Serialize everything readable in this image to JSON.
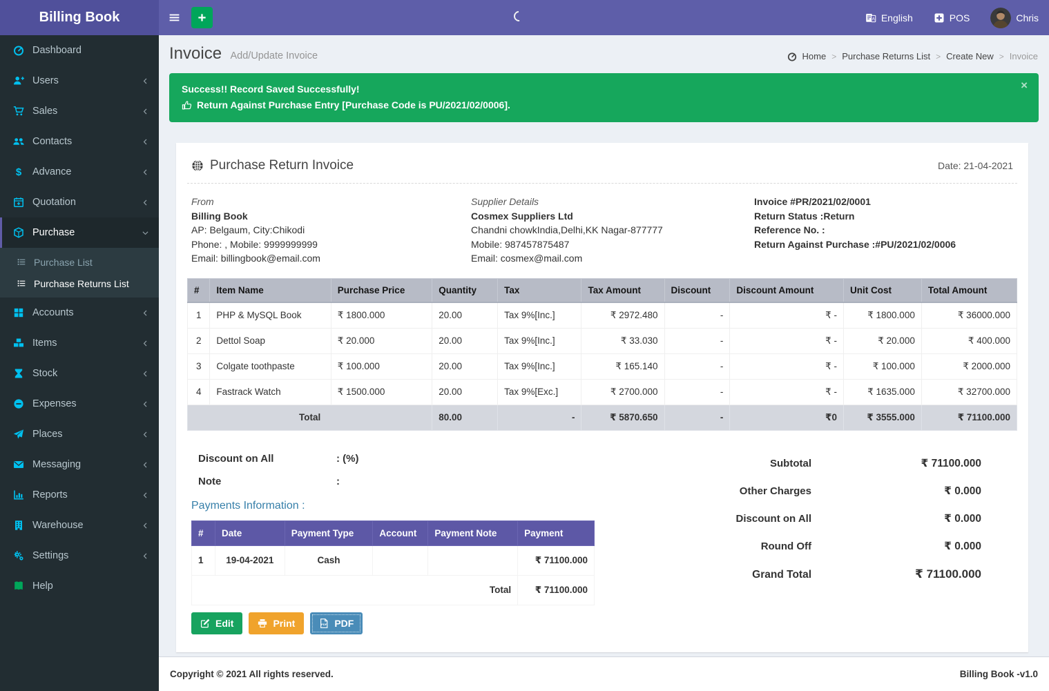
{
  "brand": {
    "title": "Billing Book"
  },
  "navbar": {
    "language_label": "English",
    "pos_label": "POS",
    "user_name": "Chris"
  },
  "sidebar": {
    "items": [
      {
        "label": "Dashboard",
        "icon": "gauge-icon"
      },
      {
        "label": "Users",
        "icon": "user-plus-icon"
      },
      {
        "label": "Sales",
        "icon": "cart-icon"
      },
      {
        "label": "Contacts",
        "icon": "users-icon"
      },
      {
        "label": "Advance",
        "icon": "dollar-icon"
      },
      {
        "label": "Quotation",
        "icon": "calendar-plus-icon"
      },
      {
        "label": "Purchase",
        "icon": "cube-icon"
      },
      {
        "label": "Accounts",
        "icon": "grid-icon"
      },
      {
        "label": "Items",
        "icon": "cubes-icon"
      },
      {
        "label": "Stock",
        "icon": "hourglass-icon"
      },
      {
        "label": "Expenses",
        "icon": "minus-circle-icon"
      },
      {
        "label": "Places",
        "icon": "paper-plane-icon"
      },
      {
        "label": "Messaging",
        "icon": "envelope-icon"
      },
      {
        "label": "Reports",
        "icon": "bar-chart-icon"
      },
      {
        "label": "Warehouse",
        "icon": "building-icon"
      },
      {
        "label": "Settings",
        "icon": "gears-icon"
      },
      {
        "label": "Help",
        "icon": "book-icon"
      }
    ],
    "purchase_children": [
      {
        "label": "Purchase List"
      },
      {
        "label": "Purchase Returns List"
      }
    ]
  },
  "page_header": {
    "title": "Invoice",
    "subtitle": "Add/Update Invoice"
  },
  "breadcrumb": {
    "separator": ">",
    "items": [
      {
        "label": "Home"
      },
      {
        "label": "Purchase Returns List"
      },
      {
        "label": "Create New"
      },
      {
        "label": "Invoice"
      }
    ]
  },
  "alert": {
    "line1": "Success!! Record Saved Successfully!",
    "line2": "Return Against Purchase Entry [Purchase Code is PU/2021/02/0006].",
    "close": "×"
  },
  "invoice": {
    "title": "Purchase Return Invoice",
    "date": "Date: 21-04-2021",
    "from": {
      "heading": "From",
      "name": "Billing Book",
      "address": "AP: Belgaum, City:Chikodi",
      "phone": "Phone: , Mobile: 9999999999",
      "email": "Email: billingbook@email.com"
    },
    "supplier": {
      "heading": "Supplier Details",
      "name": "Cosmex Suppliers Ltd",
      "address": "Chandni chowkIndia,Delhi,KK Nagar-877777",
      "phone": "Mobile: 987457875487",
      "email": "Email: cosmex@mail.com"
    },
    "meta": {
      "invoice_no": "Invoice #PR/2021/02/0001",
      "return_status": "Return Status :Return",
      "reference_no": "Reference No. :",
      "return_against": "Return Against Purchase :#PU/2021/02/0006"
    },
    "table": {
      "headers": [
        "#",
        "Item Name",
        "Purchase Price",
        "Quantity",
        "Tax",
        "Tax Amount",
        "Discount",
        "Discount Amount",
        "Unit Cost",
        "Total Amount"
      ],
      "total": {
        "label": "Total",
        "qty": "80.00",
        "tax": "-",
        "tax_amount": "₹ 5870.650",
        "discount": "-",
        "discount_amount": "₹0",
        "unit_cost": "₹ 3555.000",
        "total": "₹ 71100.000"
      }
    },
    "items": [
      {
        "sn": "1",
        "name": "PHP & MySQL Book",
        "price": "₹ 1800.000",
        "qty": "20.00",
        "tax": "Tax 9%[Inc.]",
        "tax_amount": "₹ 2972.480",
        "discount": "-",
        "discount_amount": "₹ -",
        "unit_cost": "₹ 1800.000",
        "total": "₹ 36000.000"
      },
      {
        "sn": "2",
        "name": "Dettol Soap",
        "price": "₹ 20.000",
        "qty": "20.00",
        "tax": "Tax 9%[Inc.]",
        "tax_amount": "₹ 33.030",
        "discount": "-",
        "discount_amount": "₹ -",
        "unit_cost": "₹ 20.000",
        "total": "₹ 400.000"
      },
      {
        "sn": "3",
        "name": "Colgate toothpaste",
        "price": "₹ 100.000",
        "qty": "20.00",
        "tax": "Tax 9%[Inc.]",
        "tax_amount": "₹ 165.140",
        "discount": "-",
        "discount_amount": "₹ -",
        "unit_cost": "₹ 100.000",
        "total": "₹ 2000.000"
      },
      {
        "sn": "4",
        "name": "Fastrack Watch",
        "price": "₹ 1500.000",
        "qty": "20.00",
        "tax": "Tax 9%[Exc.]",
        "tax_amount": "₹ 2700.000",
        "discount": "-",
        "discount_amount": "₹ -",
        "unit_cost": "₹ 1635.000",
        "total": "₹ 32700.000"
      }
    ],
    "kv": {
      "discount_label": "Discount on All",
      "discount_value": ": (%)",
      "note_label": "Note",
      "note_value": ":"
    },
    "payments": {
      "heading": "Payments Information :",
      "headers": [
        "#",
        "Date",
        "Payment Type",
        "Account",
        "Payment Note",
        "Payment"
      ],
      "rows": [
        {
          "sn": "1",
          "date": "19-04-2021",
          "type": "Cash",
          "account": "",
          "note": "",
          "amount": "₹ 71100.000"
        }
      ],
      "total_label": "Total",
      "total_amount": "₹ 71100.000"
    },
    "summary": [
      {
        "label": "Subtotal",
        "value": "₹ 71100.000"
      },
      {
        "label": "Other Charges",
        "value": "₹ 0.000"
      },
      {
        "label": "Discount on All",
        "value": "₹ 0.000"
      },
      {
        "label": "Round Off",
        "value": "₹ 0.000"
      },
      {
        "label": "Grand Total",
        "value": "₹ 71100.000"
      }
    ],
    "buttons": {
      "edit": "Edit",
      "print": "Print",
      "pdf": "PDF"
    }
  },
  "footer": {
    "copyright": "Copyright © 2021 All rights reserved.",
    "version": "Billing Book -v1.0"
  },
  "colors": {
    "navbar_purple": "#5e5ea9",
    "brand_purple": "#50509b",
    "sidebar_dark": "#222d32",
    "icon_cyan": "#00c0ef",
    "success_green": "#16a75c",
    "edit_green": "#17a35f",
    "print_orange": "#f0a32c",
    "pdf_blue": "#4a8cb8",
    "payments_header_purple": "#5d58a6",
    "items_header_gray": "#b7bbc6",
    "heading_teal": "#367fa9"
  }
}
